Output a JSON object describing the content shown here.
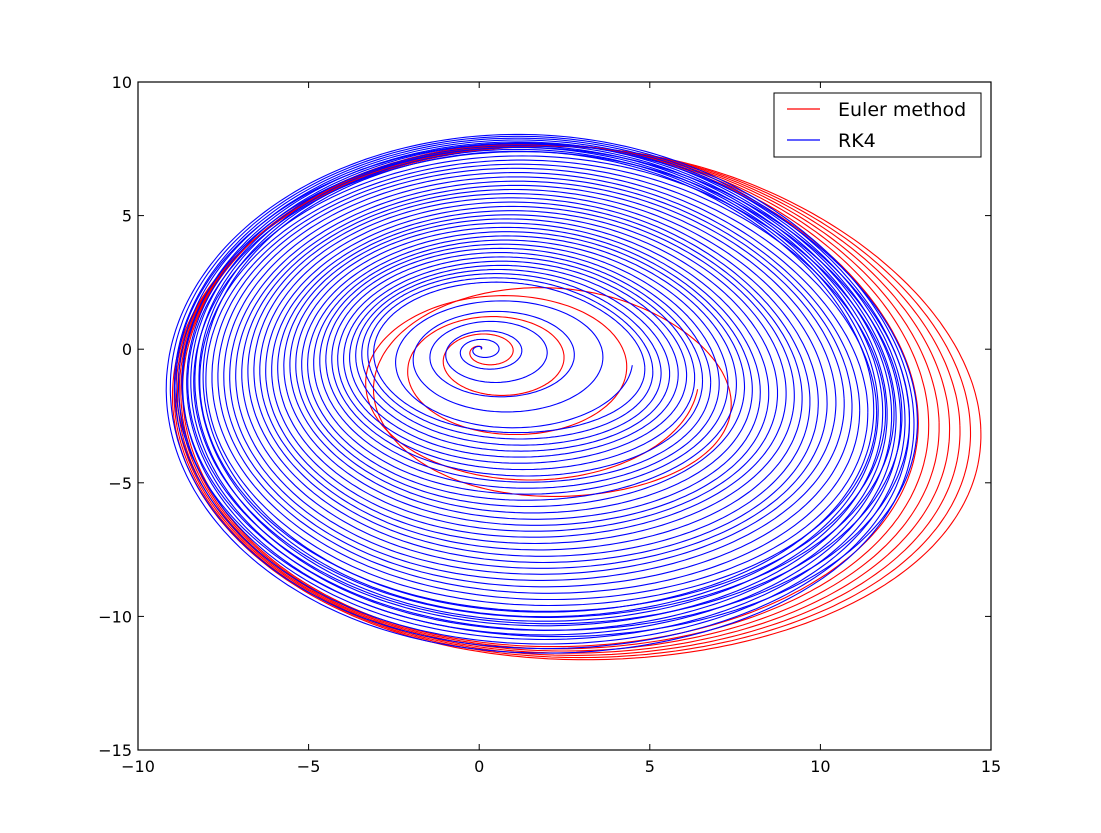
{
  "chart_data": {
    "type": "line",
    "title": "",
    "xlabel": "",
    "ylabel": "",
    "xlim": [
      -10,
      15
    ],
    "ylim": [
      -15,
      10
    ],
    "xticks": [
      -10,
      -5,
      0,
      5,
      10,
      15
    ],
    "yticks": [
      -15,
      -10,
      -5,
      0,
      5,
      10
    ],
    "xtick_labels": [
      "−10",
      "−5",
      "0",
      "5",
      "10",
      "15"
    ],
    "ytick_labels": [
      "−15",
      "−10",
      "−5",
      "0",
      "5",
      "10"
    ],
    "grid": false,
    "legend_position": "top-right",
    "series": [
      {
        "name": "Euler method",
        "color": "#ff0000",
        "description_points": [
          [
            0,
            0
          ],
          [
            2.2,
            0.4
          ],
          [
            6.5,
            0
          ],
          [
            6.2,
            -3.5
          ],
          [
            1.2,
            -5.5
          ],
          [
            -3.8,
            -2.5
          ],
          [
            -2.6,
            2.3
          ],
          [
            0,
            3.3
          ],
          [
            9.4,
            0
          ],
          [
            12.4,
            -3.3
          ],
          [
            10.0,
            -8.4
          ],
          [
            2.5,
            -11.2
          ],
          [
            -5.0,
            -9.5
          ],
          [
            -9.2,
            -1.5
          ],
          [
            -6.5,
            5.8
          ],
          [
            -1.5,
            7.8
          ],
          [
            5.0,
            5.2
          ],
          [
            12.6,
            -3.2
          ]
        ]
      },
      {
        "name": "RK4",
        "color": "#0000ff",
        "description_points": [
          [
            0,
            0
          ],
          [
            1.0,
            0.9
          ],
          [
            2.8,
            0
          ],
          [
            1.3,
            -1.9
          ],
          [
            -1.6,
            0
          ],
          [
            0,
            2.5
          ],
          [
            3.8,
            0
          ],
          [
            0.6,
            -3.1
          ],
          [
            -2.8,
            -1.3
          ],
          [
            -1.6,
            2.2
          ],
          [
            6.3,
            0
          ],
          [
            11.3,
            -3.3
          ],
          [
            9.2,
            -8.0
          ],
          [
            1.9,
            -10.6
          ],
          [
            -5.5,
            -8.5
          ],
          [
            -9.0,
            -1.0
          ],
          [
            -6.0,
            6.0
          ],
          [
            -1.5,
            7.7
          ],
          [
            5.5,
            4.5
          ],
          [
            10.9,
            -1.9
          ]
        ]
      }
    ]
  }
}
